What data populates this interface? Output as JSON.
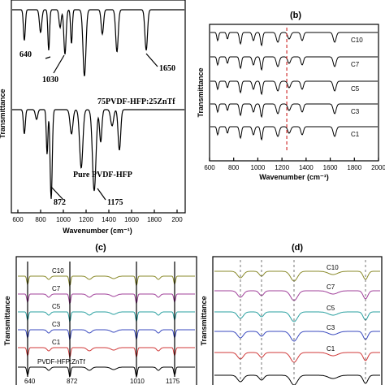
{
  "chart_data": [
    {
      "panel": "a",
      "type": "line",
      "xlabel": "Wavenumber (cm⁻¹)",
      "ylabel": "Transmittance",
      "xlim": [
        550,
        2000
      ],
      "xticks": [
        "600",
        "800",
        "1000",
        "1200",
        "1400",
        "1600",
        "1800",
        "200"
      ],
      "series": [
        {
          "name": "75PVDF-HFP:25ZnTf",
          "color": "#000000"
        },
        {
          "name": "Pure PVDF-HFP",
          "color": "#000000"
        }
      ],
      "annotations": [
        "640",
        "1030",
        "1650",
        "872",
        "1175"
      ]
    },
    {
      "panel": "b",
      "type": "line",
      "title": "(b)",
      "xlabel": "Wavenumber (cm⁻¹)",
      "ylabel": "Transmittance",
      "xlim": [
        600,
        2000
      ],
      "xticks": [
        "600",
        "800",
        "1000",
        "1200",
        "1400",
        "1600",
        "1800",
        "2000"
      ],
      "marker_x": 1240,
      "series": [
        {
          "name": "C10",
          "color": "#000000"
        },
        {
          "name": "C7",
          "color": "#000000"
        },
        {
          "name": "C5",
          "color": "#000000"
        },
        {
          "name": "C3",
          "color": "#000000"
        },
        {
          "name": "C1",
          "color": "#000000"
        }
      ]
    },
    {
      "panel": "c",
      "type": "line",
      "title": "(c)",
      "ylabel": "Transmittance",
      "bottom_labels": [
        "640",
        "872",
        "1010",
        "1175"
      ],
      "series": [
        {
          "name": "C10",
          "color": "#8a8a2a"
        },
        {
          "name": "C7",
          "color": "#a0409a"
        },
        {
          "name": "C5",
          "color": "#2aa0a0"
        },
        {
          "name": "C3",
          "color": "#3a4abf"
        },
        {
          "name": "C1",
          "color": "#d03a3a"
        },
        {
          "name": "PVDF-HFP:ZnTf",
          "color": "#000000"
        }
      ]
    },
    {
      "panel": "d",
      "type": "line",
      "title": "(d)",
      "ylabel": "Transmittance",
      "series": [
        {
          "name": "C10",
          "color": "#8a8a2a"
        },
        {
          "name": "C7",
          "color": "#a0409a"
        },
        {
          "name": "C5",
          "color": "#2aa0a0"
        },
        {
          "name": "C3",
          "color": "#3a4abf"
        },
        {
          "name": "C1",
          "color": "#d03a3a"
        },
        {
          "name": "PVDF-HFP:ZnTf",
          "color": "#000000"
        }
      ]
    }
  ]
}
